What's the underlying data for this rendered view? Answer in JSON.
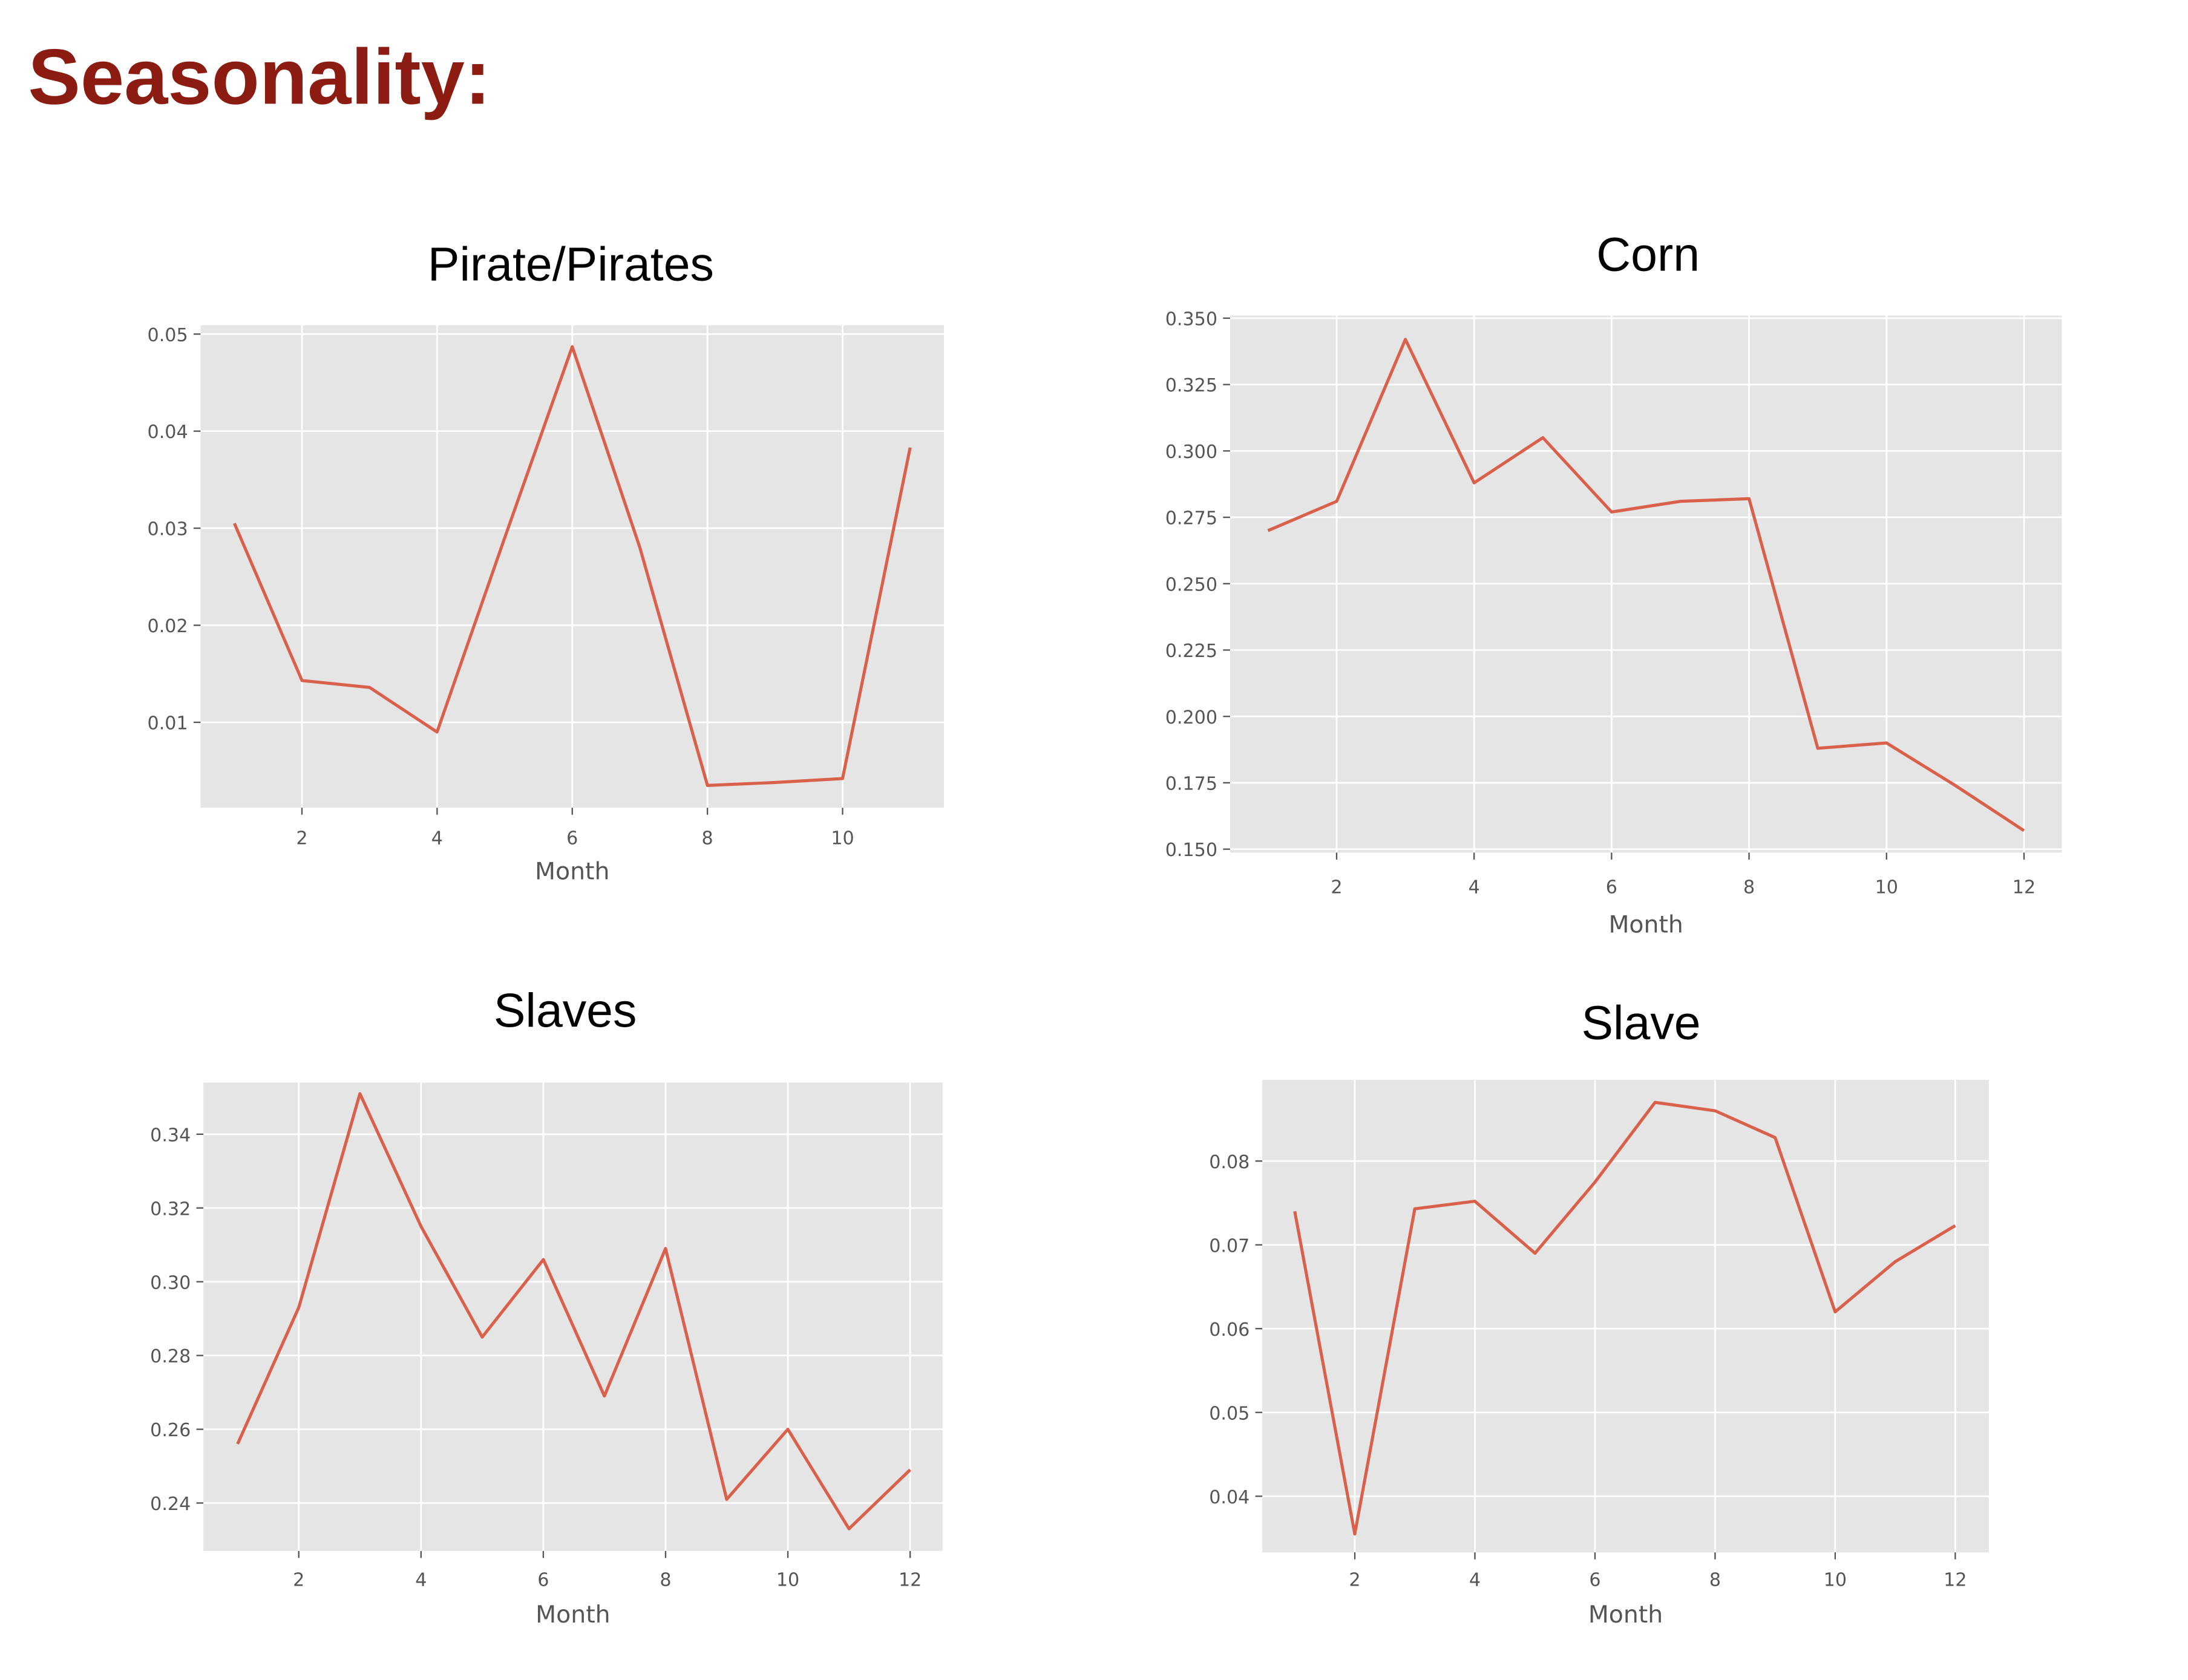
{
  "heading": "Seasonality:",
  "colors": {
    "heading": "#8c1c11",
    "line": "#d9604a",
    "plot_bg": "#e5e5e5",
    "grid": "#ffffff"
  },
  "chart_data": [
    {
      "type": "line",
      "title": "Pirate/Pirates",
      "xlabel": "Month",
      "ylabel": "",
      "grid": true,
      "xlim": [
        0.5,
        11.5
      ],
      "ylim": [
        0.0012,
        0.0509
      ],
      "xticks": [
        2,
        4,
        6,
        8,
        10
      ],
      "xtick_labels": [
        "2",
        "4",
        "6",
        "8",
        "10"
      ],
      "yticks": [
        0.01,
        0.02,
        0.03,
        0.04,
        0.05
      ],
      "ytick_labels": [
        "0.01",
        "0.02",
        "0.03",
        "0.04",
        "0.05"
      ],
      "x": [
        1,
        2,
        3,
        4,
        5,
        6,
        7,
        8,
        9,
        10,
        11
      ],
      "y": [
        0.0305,
        0.0143,
        0.0136,
        0.009,
        0.029,
        0.0487,
        0.028,
        0.0035,
        0.0038,
        0.0042,
        0.0383
      ]
    },
    {
      "type": "line",
      "title": "Corn",
      "xlabel": "Month",
      "ylabel": "",
      "grid": true,
      "xlim": [
        0.45,
        12.55
      ],
      "ylim": [
        0.1487,
        0.351
      ],
      "xticks": [
        2,
        4,
        6,
        8,
        10,
        12
      ],
      "xtick_labels": [
        "2",
        "4",
        "6",
        "8",
        "10",
        "12"
      ],
      "yticks": [
        0.15,
        0.175,
        0.2,
        0.225,
        0.25,
        0.275,
        0.3,
        0.325,
        0.35
      ],
      "ytick_labels": [
        "0.150",
        "0.175",
        "0.200",
        "0.225",
        "0.250",
        "0.275",
        "0.300",
        "0.325",
        "0.350"
      ],
      "x": [
        1,
        2,
        3,
        4,
        5,
        6,
        7,
        8,
        9,
        10,
        11,
        12
      ],
      "y": [
        0.27,
        0.281,
        0.342,
        0.288,
        0.305,
        0.277,
        0.281,
        0.282,
        0.188,
        0.19,
        0.174,
        0.157
      ]
    },
    {
      "type": "line",
      "title": "Slaves",
      "xlabel": "Month",
      "ylabel": "",
      "grid": true,
      "xlim": [
        0.44,
        12.53
      ],
      "ylim": [
        0.227,
        0.354
      ],
      "xticks": [
        2,
        4,
        6,
        8,
        10,
        12
      ],
      "xtick_labels": [
        "2",
        "4",
        "6",
        "8",
        "10",
        "12"
      ],
      "yticks": [
        0.24,
        0.26,
        0.28,
        0.3,
        0.32,
        0.34
      ],
      "ytick_labels": [
        "0.24",
        "0.26",
        "0.28",
        "0.30",
        "0.32",
        "0.34"
      ],
      "x": [
        1,
        2,
        3,
        4,
        5,
        6,
        7,
        8,
        9,
        10,
        11,
        12
      ],
      "y": [
        0.256,
        0.293,
        0.351,
        0.315,
        0.285,
        0.306,
        0.269,
        0.309,
        0.241,
        0.26,
        0.233,
        0.249
      ]
    },
    {
      "type": "line",
      "title": "Slave",
      "xlabel": "Month",
      "ylabel": "",
      "grid": true,
      "xlim": [
        0.46,
        12.56
      ],
      "ylim": [
        0.0333,
        0.0897
      ],
      "xticks": [
        2,
        4,
        6,
        8,
        10,
        12
      ],
      "xtick_labels": [
        "2",
        "4",
        "6",
        "8",
        "10",
        "12"
      ],
      "yticks": [
        0.04,
        0.05,
        0.06,
        0.07,
        0.08
      ],
      "ytick_labels": [
        "0.04",
        "0.05",
        "0.06",
        "0.07",
        "0.08"
      ],
      "x": [
        1,
        2,
        3,
        4,
        5,
        6,
        7,
        8,
        9,
        10,
        11,
        12
      ],
      "y": [
        0.074,
        0.0355,
        0.0743,
        0.0752,
        0.069,
        0.0775,
        0.087,
        0.086,
        0.0828,
        0.062,
        0.068,
        0.0723
      ]
    }
  ]
}
